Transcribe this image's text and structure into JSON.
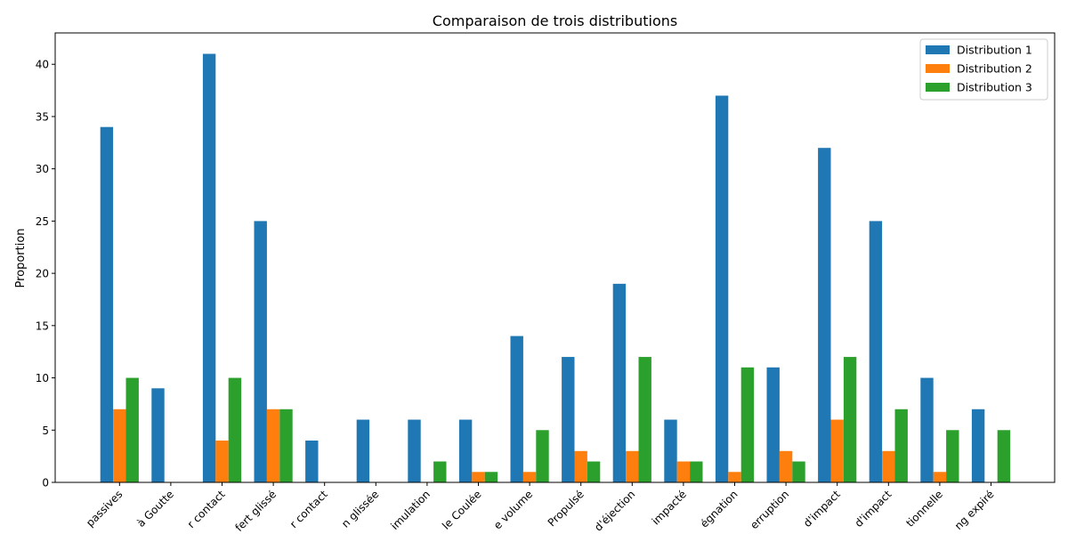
{
  "chart_data": {
    "type": "bar",
    "title": "Comparaison de trois distributions",
    "xlabel": "",
    "ylabel": "Proportion",
    "ylim": [
      0,
      43
    ],
    "yticks": [
      0,
      5,
      10,
      15,
      20,
      25,
      30,
      35,
      40
    ],
    "grid": false,
    "legend_position": "top-right",
    "categories": [
      "passives",
      "à Goutte",
      "r contact",
      "fert glissé",
      "r contact",
      "n glissée",
      "imulation",
      "le Coulée",
      "e volume",
      "Propulsé",
      "d'éjection",
      "impacté",
      "égnation",
      "erruption",
      "d'impact",
      "d'impact",
      "tionnelle",
      "ng expiré"
    ],
    "series": [
      {
        "name": "Distribution 1",
        "color": "#1f77b4",
        "values": [
          34,
          9,
          41,
          25,
          4,
          6,
          6,
          6,
          14,
          12,
          19,
          6,
          37,
          11,
          32,
          25,
          10,
          7
        ]
      },
      {
        "name": "Distribution 2",
        "color": "#ff7f0e",
        "values": [
          7,
          0,
          4,
          7,
          0,
          0,
          0,
          1,
          1,
          3,
          3,
          2,
          1,
          3,
          6,
          3,
          1,
          0
        ]
      },
      {
        "name": "Distribution 3",
        "color": "#2ca02c",
        "values": [
          10,
          0,
          10,
          7,
          0,
          0,
          2,
          1,
          5,
          2,
          12,
          2,
          11,
          2,
          12,
          7,
          5,
          5
        ]
      }
    ]
  }
}
